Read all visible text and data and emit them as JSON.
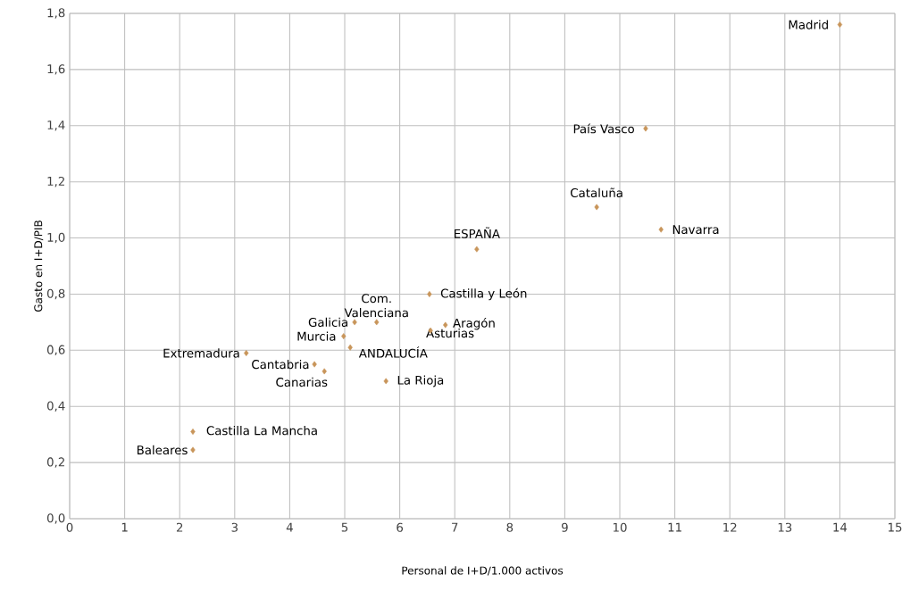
{
  "chart_data": {
    "type": "scatter",
    "xlabel": "Personal de I+D/1.000 activos",
    "ylabel": "Gasto en I+D/PIB",
    "color": "#c8955a",
    "marker": "diamond",
    "grid": true,
    "x": [
      14.0,
      10.47,
      9.58,
      10.75,
      7.4,
      6.54,
      5.58,
      5.18,
      4.98,
      5.1,
      6.83,
      6.56,
      3.21,
      4.45,
      4.63,
      5.75,
      2.24,
      2.24
    ],
    "values": [
      1.76,
      1.39,
      1.11,
      1.03,
      0.96,
      0.8,
      0.7,
      0.7,
      0.65,
      0.61,
      0.69,
      0.67,
      0.59,
      0.55,
      0.525,
      0.49,
      0.31,
      0.245
    ],
    "annotations": [
      {
        "text": "Madrid",
        "x": 14.0,
        "y": 1.76
      },
      {
        "text": "País Vasco",
        "x": 10.47,
        "y": 1.39
      },
      {
        "text": "Cataluña",
        "x": 9.58,
        "y": 1.11
      },
      {
        "text": "Navarra",
        "x": 10.75,
        "y": 1.03
      },
      {
        "text": "ESPAÑA",
        "x": 7.4,
        "y": 0.96
      },
      {
        "text": "Castilla y León",
        "x": 6.54,
        "y": 0.8
      },
      {
        "text": "Com. Valenciana",
        "x": 5.58,
        "y": 0.7
      },
      {
        "text": "Galicia",
        "x": 5.18,
        "y": 0.7
      },
      {
        "text": "Murcia",
        "x": 4.98,
        "y": 0.65
      },
      {
        "text": "ANDALUCÍA",
        "x": 5.1,
        "y": 0.61
      },
      {
        "text": "Aragón",
        "x": 6.83,
        "y": 0.69
      },
      {
        "text": "Asturias",
        "x": 6.56,
        "y": 0.67
      },
      {
        "text": "Extremadura",
        "x": 3.21,
        "y": 0.59
      },
      {
        "text": "Cantabria",
        "x": 4.45,
        "y": 0.55
      },
      {
        "text": "Canarias",
        "x": 4.63,
        "y": 0.525
      },
      {
        "text": "La Rioja",
        "x": 5.75,
        "y": 0.49
      },
      {
        "text": "Castilla La Mancha",
        "x": 2.24,
        "y": 0.31
      },
      {
        "text": "Baleares",
        "x": 2.24,
        "y": 0.245
      }
    ],
    "xlim": [
      0,
      15
    ],
    "xticks": [
      0,
      1,
      2,
      3,
      4,
      5,
      6,
      7,
      8,
      9,
      10,
      11,
      12,
      13,
      14,
      15
    ],
    "ylim": [
      0,
      1.8
    ],
    "yticks": [
      {
        "value": 0,
        "label": "0,0"
      },
      {
        "value": 0.2,
        "label": "0,2"
      },
      {
        "value": 0.4,
        "label": "0,4"
      },
      {
        "value": 0.6,
        "label": "0,6"
      },
      {
        "value": 0.8,
        "label": "0,8"
      },
      {
        "value": 1.0,
        "label": "1,0"
      },
      {
        "value": 1.2,
        "label": "1,2"
      },
      {
        "value": 1.4,
        "label": "1,4"
      },
      {
        "value": 1.6,
        "label": "1,6"
      },
      {
        "value": 1.8,
        "label": "1,8"
      }
    ]
  }
}
